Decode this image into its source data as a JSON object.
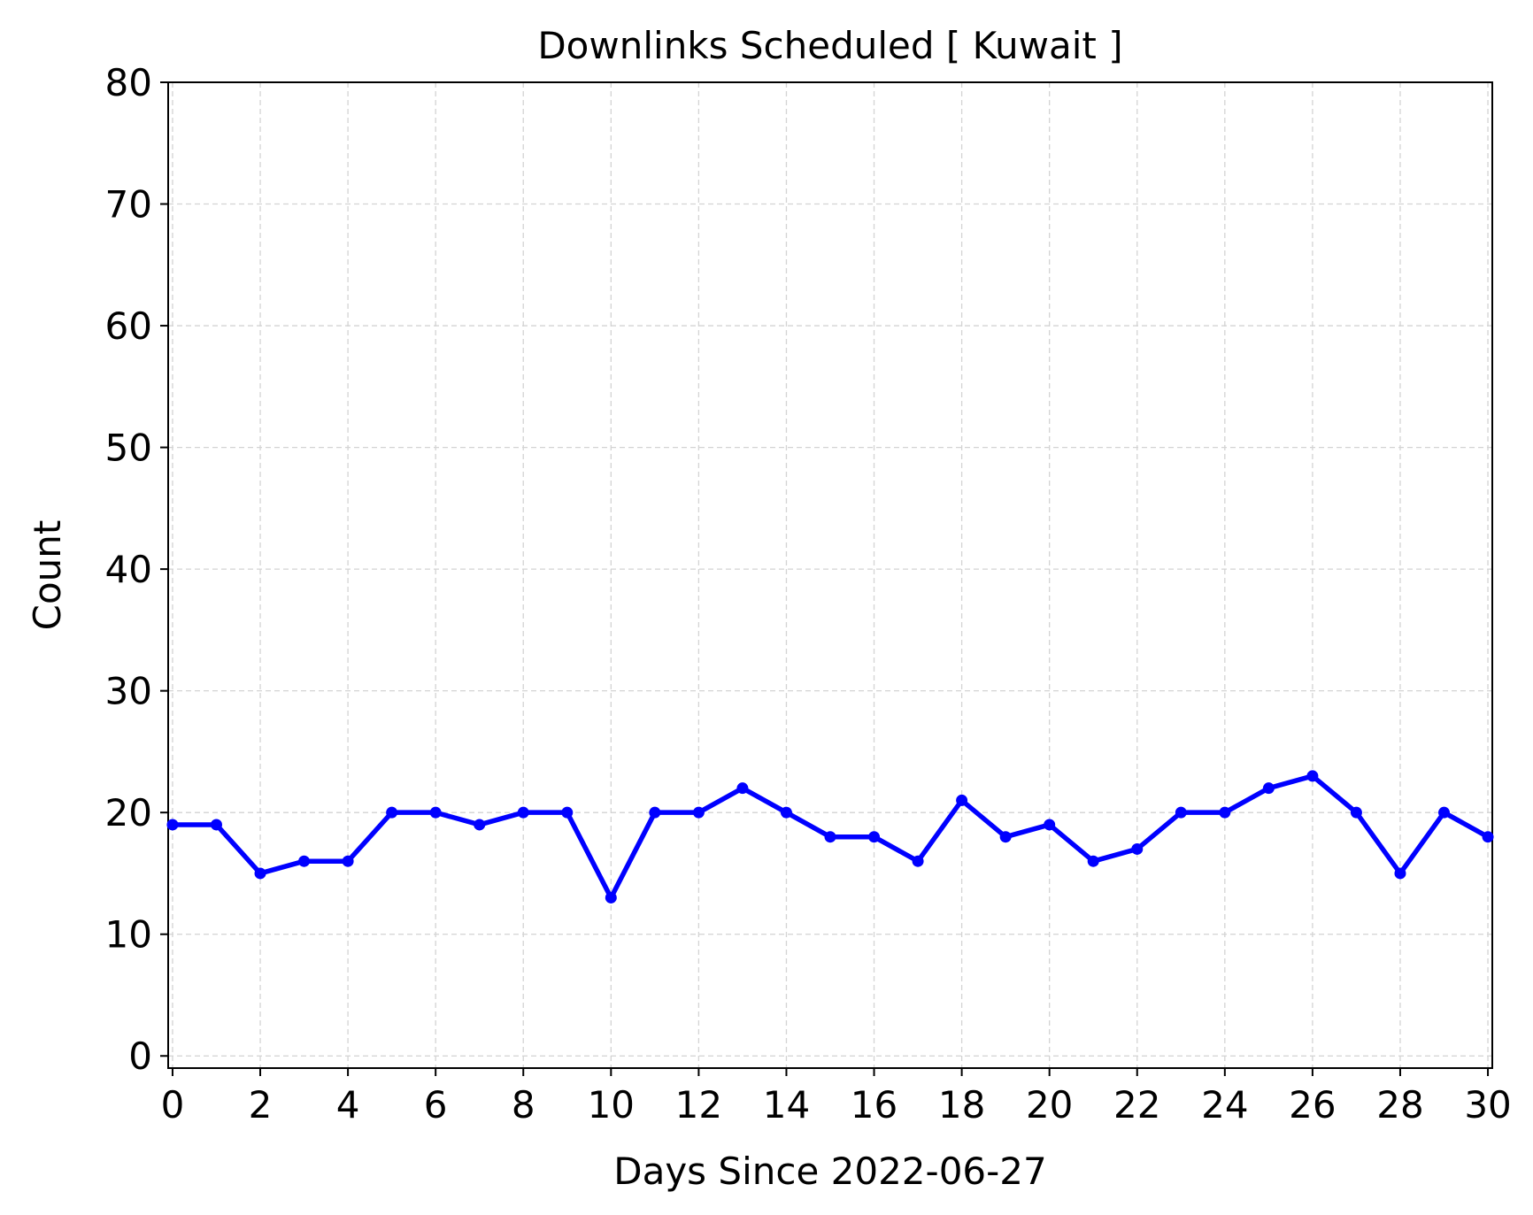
{
  "chart_data": {
    "type": "line",
    "title": "Downlinks Scheduled [ Kuwait ]",
    "xlabel": "Days Since 2022-06-27",
    "ylabel": "Count",
    "xlim": [
      -0.1,
      30.1
    ],
    "ylim": [
      -1,
      80
    ],
    "xticks": [
      0,
      2,
      4,
      6,
      8,
      10,
      12,
      14,
      16,
      18,
      20,
      22,
      24,
      26,
      28,
      30
    ],
    "yticks": [
      0,
      10,
      20,
      30,
      40,
      50,
      60,
      70,
      80
    ],
    "grid": true,
    "legend": "none",
    "series": [
      {
        "color": "#0000ff",
        "x": [
          0,
          1,
          2,
          3,
          4,
          5,
          6,
          7,
          8,
          9,
          10,
          11,
          12,
          13,
          14,
          15,
          16,
          17,
          18,
          19,
          20,
          21,
          22,
          23,
          24,
          25,
          26,
          27,
          28,
          29,
          30
        ],
        "y": [
          19,
          19,
          15,
          16,
          16,
          20,
          20,
          19,
          20,
          20,
          13,
          20,
          20,
          22,
          20,
          18,
          18,
          16,
          21,
          18,
          19,
          16,
          17,
          20,
          20,
          22,
          23,
          20,
          15,
          20,
          18
        ]
      }
    ]
  }
}
